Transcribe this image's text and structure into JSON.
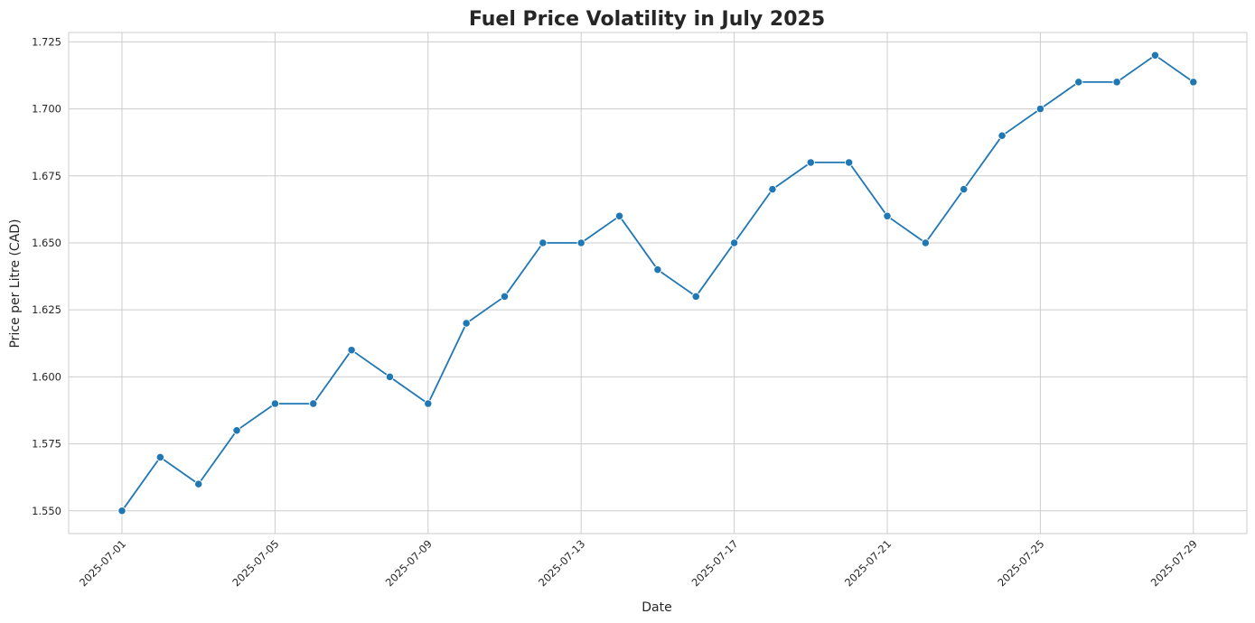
{
  "chart_data": {
    "type": "line",
    "title": "Fuel Price Volatility in July 2025",
    "xlabel": "Date",
    "ylabel": "Price per Litre (CAD)",
    "x": [
      "2025-07-01",
      "2025-07-02",
      "2025-07-03",
      "2025-07-04",
      "2025-07-05",
      "2025-07-06",
      "2025-07-07",
      "2025-07-08",
      "2025-07-09",
      "2025-07-10",
      "2025-07-11",
      "2025-07-12",
      "2025-07-13",
      "2025-07-14",
      "2025-07-15",
      "2025-07-16",
      "2025-07-17",
      "2025-07-18",
      "2025-07-19",
      "2025-07-20",
      "2025-07-21",
      "2025-07-22",
      "2025-07-23",
      "2025-07-24",
      "2025-07-25",
      "2025-07-26",
      "2025-07-27",
      "2025-07-28",
      "2025-07-29"
    ],
    "values": [
      1.55,
      1.57,
      1.56,
      1.58,
      1.59,
      1.59,
      1.61,
      1.6,
      1.59,
      1.62,
      1.63,
      1.65,
      1.65,
      1.66,
      1.64,
      1.63,
      1.65,
      1.67,
      1.68,
      1.68,
      1.66,
      1.65,
      1.67,
      1.69,
      1.7,
      1.71,
      1.71,
      1.72,
      1.71
    ],
    "x_ticks": [
      "2025-07-01",
      "2025-07-05",
      "2025-07-09",
      "2025-07-13",
      "2025-07-17",
      "2025-07-21",
      "2025-07-25",
      "2025-07-29"
    ],
    "y_ticks": [
      "1.550",
      "1.575",
      "1.600",
      "1.625",
      "1.650",
      "1.675",
      "1.700",
      "1.725"
    ],
    "ylim": [
      1.5415,
      1.7285
    ],
    "grid": true,
    "marker": "circle",
    "color": "#1f77b4"
  }
}
